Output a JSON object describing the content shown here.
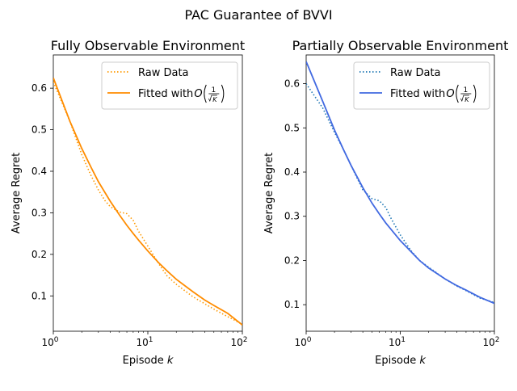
{
  "figure": {
    "suptitle": "PAC Guarantee of BVVI"
  },
  "chart_data": [
    {
      "type": "line",
      "title": "Fully Observable Environment",
      "xlabel": "Episode k",
      "ylabel": "Average Regret",
      "xscale": "log",
      "xlim": [
        1,
        100
      ],
      "ylim": [
        0.015,
        0.68
      ],
      "xticks": [
        1,
        10,
        100
      ],
      "xtick_labels": [
        {
          "base": "10",
          "exp": "0"
        },
        {
          "base": "10",
          "exp": "1"
        },
        {
          "base": "10",
          "exp": "2"
        }
      ],
      "yticks": [
        0.1,
        0.2,
        0.3,
        0.4,
        0.5,
        0.6
      ],
      "ytick_labels": [
        "0.1",
        "0.2",
        "0.3",
        "0.4",
        "0.5",
        "0.6"
      ],
      "legend_position": "top-right",
      "series": [
        {
          "name": "Raw Data",
          "style": "dotted",
          "color": "#ff9900",
          "x": [
            1,
            1.5,
            2,
            2.5,
            3,
            3.5,
            4,
            5,
            6,
            7,
            8,
            10,
            13,
            16,
            20,
            30,
            50,
            70,
            100
          ],
          "y": [
            0.615,
            0.52,
            0.44,
            0.39,
            0.355,
            0.33,
            0.315,
            0.302,
            0.298,
            0.282,
            0.255,
            0.22,
            0.178,
            0.148,
            0.128,
            0.098,
            0.068,
            0.05,
            0.032
          ]
        },
        {
          "name": "Fitted with O(1/√K)",
          "legend_prefix": "Fitted with ",
          "legend_math_O": "O",
          "legend_math_num": "1",
          "legend_math_den": "K",
          "style": "solid",
          "color": "#ff8c00",
          "x": [
            1,
            1.5,
            2,
            2.5,
            3,
            4,
            5,
            6,
            7,
            8,
            10,
            13,
            16,
            20,
            30,
            40,
            50,
            70,
            100
          ],
          "y": [
            0.625,
            0.52,
            0.455,
            0.41,
            0.375,
            0.328,
            0.295,
            0.27,
            0.25,
            0.234,
            0.208,
            0.18,
            0.16,
            0.14,
            0.11,
            0.09,
            0.077,
            0.058,
            0.03
          ]
        }
      ]
    },
    {
      "type": "line",
      "title": "Partially Observable Environment",
      "xlabel": "Episode k",
      "ylabel": "Average Regret",
      "xscale": "log",
      "xlim": [
        1,
        100
      ],
      "ylim": [
        0.04,
        0.665
      ],
      "xticks": [
        1,
        10,
        100
      ],
      "xtick_labels": [
        {
          "base": "10",
          "exp": "0"
        },
        {
          "base": "10",
          "exp": "1"
        },
        {
          "base": "10",
          "exp": "2"
        }
      ],
      "yticks": [
        0.1,
        0.2,
        0.3,
        0.4,
        0.5,
        0.6
      ],
      "ytick_labels": [
        "0.1",
        "0.2",
        "0.3",
        "0.4",
        "0.5",
        "0.6"
      ],
      "legend_position": "top-right",
      "series": [
        {
          "name": "Raw Data",
          "style": "dotted",
          "color": "#1f77b4",
          "x": [
            1,
            1.5,
            2,
            2.5,
            3,
            3.5,
            4,
            5,
            6,
            7,
            8,
            10,
            13,
            16,
            20,
            30,
            40,
            50,
            70,
            100
          ],
          "y": [
            0.6,
            0.545,
            0.49,
            0.45,
            0.415,
            0.385,
            0.36,
            0.34,
            0.335,
            0.32,
            0.295,
            0.258,
            0.222,
            0.2,
            0.185,
            0.158,
            0.142,
            0.132,
            0.115,
            0.105
          ]
        },
        {
          "name": "Fitted with O(1/√K)",
          "legend_prefix": "Fitted with ",
          "legend_math_O": "O",
          "legend_math_num": "1",
          "legend_math_den": "K",
          "style": "solid",
          "color": "#4169e1",
          "x": [
            1,
            1.5,
            2,
            2.5,
            3,
            4,
            5,
            6,
            7,
            8,
            10,
            13,
            16,
            20,
            30,
            40,
            50,
            70,
            100
          ],
          "y": [
            0.65,
            0.56,
            0.495,
            0.45,
            0.415,
            0.365,
            0.33,
            0.305,
            0.285,
            0.27,
            0.245,
            0.22,
            0.2,
            0.183,
            0.158,
            0.143,
            0.133,
            0.117,
            0.103
          ]
        }
      ]
    }
  ]
}
